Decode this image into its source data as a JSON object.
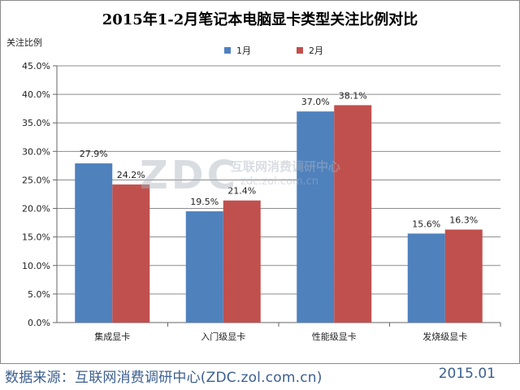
{
  "chart_data": {
    "type": "bar",
    "title": "2015年1-2月笔记本电脑显卡类型关注比例对比",
    "ylabel": "关注比例",
    "xlabel": "",
    "categories": [
      "集成显卡",
      "入门级显卡",
      "性能级显卡",
      "发烧级显卡"
    ],
    "series": [
      {
        "name": "1月",
        "color": "#4f81bd",
        "values": [
          27.9,
          19.5,
          37.0,
          15.6
        ],
        "labels": [
          "27.9%",
          "19.5%",
          "37.0%",
          "15.6%"
        ]
      },
      {
        "name": "2月",
        "color": "#c0504d",
        "values": [
          24.2,
          21.4,
          38.1,
          16.3
        ],
        "labels": [
          "24.2%",
          "21.4%",
          "38.1%",
          "16.3%"
        ]
      }
    ],
    "ylim": [
      0,
      45
    ],
    "yticks": [
      "0.0%",
      "5.0%",
      "10.0%",
      "15.0%",
      "20.0%",
      "25.0%",
      "30.0%",
      "35.0%",
      "40.0%",
      "45.0%"
    ],
    "grid": true,
    "legend_position": "top-center"
  },
  "watermark": {
    "logo": "ZDC",
    "cn": "互联网消费调研中心",
    "url": "zdc.zol.com.cn"
  },
  "footer": {
    "source": "数据来源：互联网消费调研中心(ZDC.zol.com.cn)",
    "date": "2015.01"
  }
}
